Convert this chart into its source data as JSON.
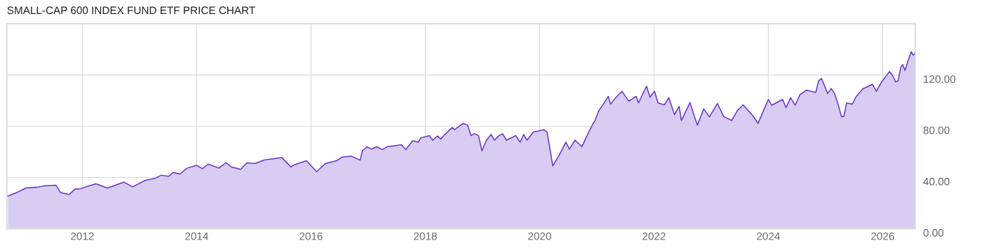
{
  "chart_data": {
    "type": "area",
    "title": "SMALL-CAP 600 INDEX FUND ETF PRICE CHART",
    "x": [
      2010.7,
      2010.85,
      2011.01,
      2011.21,
      2011.34,
      2011.54,
      2011.62,
      2011.77,
      2011.87,
      2011.97,
      2012.12,
      2012.24,
      2012.44,
      2012.73,
      2012.88,
      2013.1,
      2013.26,
      2013.38,
      2013.51,
      2013.59,
      2013.71,
      2013.83,
      2014.0,
      2014.1,
      2014.2,
      2014.39,
      2014.51,
      2014.61,
      2014.77,
      2014.88,
      2015.02,
      2015.18,
      2015.49,
      2015.65,
      2015.71,
      2015.92,
      2016.1,
      2016.25,
      2016.45,
      2016.55,
      2016.7,
      2016.86,
      2016.9,
      2016.98,
      2017.06,
      2017.15,
      2017.25,
      2017.33,
      2017.58,
      2017.66,
      2017.78,
      2017.88,
      2017.92,
      2018.07,
      2018.13,
      2018.21,
      2018.27,
      2018.33,
      2018.47,
      2018.51,
      2018.58,
      2018.66,
      2018.74,
      2018.8,
      2018.86,
      2018.93,
      2018.99,
      2019.07,
      2019.15,
      2019.21,
      2019.29,
      2019.35,
      2019.42,
      2019.58,
      2019.66,
      2019.72,
      2019.78,
      2019.89,
      2020.07,
      2020.13,
      2020.23,
      2020.29,
      2020.34,
      2020.46,
      2020.52,
      2020.62,
      2020.74,
      2020.8,
      2020.87,
      2020.93,
      2020.97,
      2021.03,
      2021.11,
      2021.2,
      2021.24,
      2021.34,
      2021.44,
      2021.56,
      2021.69,
      2021.73,
      2021.87,
      2021.93,
      2022.01,
      2022.07,
      2022.18,
      2022.26,
      2022.36,
      2022.44,
      2022.48,
      2022.63,
      2022.71,
      2022.76,
      2022.87,
      2022.97,
      2023.11,
      2023.22,
      2023.36,
      2023.46,
      2023.56,
      2023.73,
      2023.82,
      2023.89,
      2024.0,
      2024.06,
      2024.25,
      2024.31,
      2024.39,
      2024.47,
      2024.55,
      2024.67,
      2024.83,
      2024.88,
      2024.93,
      2025.04,
      2025.1,
      2025.16,
      2025.22,
      2025.28,
      2025.32,
      2025.37,
      2025.47,
      2025.53,
      2025.65,
      2025.82,
      2025.89,
      2025.98,
      2026.12,
      2026.18,
      2026.23,
      2026.27,
      2026.32,
      2026.35,
      2026.39,
      2026.43,
      2026.5,
      2026.53,
      2026.56
    ],
    "series": [
      {
        "color": "#6633cc",
        "values": [
          25.5,
          28.2,
          31.8,
          32.4,
          33.6,
          34.0,
          28.2,
          26.7,
          30.9,
          31.3,
          33.6,
          35.1,
          31.8,
          36.4,
          32.7,
          37.8,
          39.1,
          41.8,
          40.9,
          44.0,
          42.7,
          47.3,
          49.5,
          46.9,
          50.5,
          47.3,
          51.6,
          48.2,
          46.4,
          51.5,
          50.9,
          53.6,
          55.5,
          48.2,
          50.0,
          53.1,
          44.5,
          50.9,
          53.1,
          56.0,
          56.7,
          53.6,
          60.9,
          64.0,
          62.2,
          64.0,
          61.8,
          64.0,
          65.5,
          61.8,
          68.7,
          67.6,
          70.9,
          72.7,
          69.1,
          72.4,
          70.0,
          73.1,
          79.1,
          77.3,
          79.6,
          82.2,
          80.9,
          72.7,
          74.2,
          72.7,
          60.9,
          69.1,
          73.6,
          69.1,
          72.7,
          74.2,
          69.1,
          72.7,
          67.6,
          73.6,
          69.1,
          75.5,
          77.3,
          75.5,
          49.1,
          53.6,
          57.3,
          67.6,
          62.2,
          69.1,
          64.0,
          70.0,
          76.4,
          81.8,
          84.5,
          91.8,
          97.0,
          103.3,
          97.3,
          102.7,
          107.3,
          99.6,
          103.3,
          98.2,
          111.3,
          102.7,
          107.3,
          98.2,
          96.7,
          102.2,
          89.1,
          95.5,
          84.5,
          98.5,
          87.3,
          80.9,
          93.6,
          87.3,
          97.8,
          87.6,
          84.5,
          92.4,
          96.7,
          88.2,
          82.2,
          89.5,
          100.9,
          96.4,
          100.9,
          94.5,
          102.2,
          96.4,
          104.5,
          108.2,
          106.4,
          115.5,
          117.3,
          105.5,
          109.5,
          105.5,
          97.3,
          87.6,
          87.6,
          98.2,
          97.3,
          102.7,
          109.1,
          112.7,
          107.3,
          114.5,
          122.7,
          119.1,
          114.5,
          115.5,
          126.4,
          128.2,
          123.6,
          129.1,
          138.2,
          135.5,
          136.4
        ]
      }
    ],
    "xlim": [
      2010.68,
      2026.57
    ],
    "xticks": [
      2012,
      2014,
      2016,
      2018,
      2020,
      2022,
      2024,
      2026
    ],
    "ylim": [
      0,
      160
    ],
    "yticks": [
      {
        "value": 0,
        "label": "0.00"
      },
      {
        "value": 40,
        "label": "40.00"
      },
      {
        "value": 80,
        "label": "80.00"
      },
      {
        "value": 120,
        "label": "120.00"
      }
    ],
    "grid": true
  }
}
